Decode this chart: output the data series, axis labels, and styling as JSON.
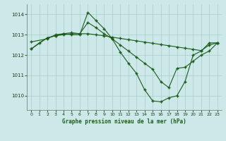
{
  "title": "Graphe pression niveau de la mer (hPa)",
  "bg_color": "#cce8e8",
  "grid_color": "#aacccc",
  "line_color": "#1a5c1a",
  "marker": "+",
  "xlim": [
    -0.5,
    23.5
  ],
  "ylim": [
    1009.3,
    1014.5
  ],
  "yticks": [
    1010,
    1011,
    1012,
    1013,
    1014
  ],
  "xticks": [
    0,
    1,
    2,
    3,
    4,
    5,
    6,
    7,
    8,
    9,
    10,
    11,
    12,
    13,
    14,
    15,
    16,
    17,
    18,
    19,
    20,
    21,
    22,
    23
  ],
  "series": [
    {
      "x": [
        0,
        1,
        2,
        3,
        4,
        5,
        6,
        7,
        8,
        9,
        10,
        11,
        12,
        13,
        14,
        15,
        16,
        17,
        18,
        19,
        20,
        21,
        22,
        23
      ],
      "y": [
        1012.3,
        1012.6,
        1012.85,
        1012.95,
        1013.05,
        1013.0,
        1013.0,
        1014.1,
        1013.7,
        1013.3,
        1012.8,
        1012.15,
        1011.6,
        1011.1,
        1010.3,
        1009.75,
        1009.7,
        1009.9,
        1010.0,
        1010.7,
        1012.0,
        1012.2,
        1012.6,
        1012.6
      ]
    },
    {
      "x": [
        0,
        2,
        3,
        4,
        5,
        6,
        7,
        8,
        9,
        10,
        11,
        12,
        13,
        14,
        15,
        16,
        17,
        18,
        19,
        20,
        21,
        22,
        23
      ],
      "y": [
        1012.3,
        1012.85,
        1012.95,
        1013.0,
        1013.05,
        1013.05,
        1013.05,
        1013.0,
        1012.95,
        1012.88,
        1012.82,
        1012.76,
        1012.7,
        1012.64,
        1012.58,
        1012.52,
        1012.46,
        1012.4,
        1012.34,
        1012.28,
        1012.22,
        1012.5,
        1012.6
      ]
    },
    {
      "x": [
        0,
        2,
        3,
        4,
        5,
        6,
        7,
        8,
        9,
        10,
        11,
        12,
        13,
        14,
        15,
        16,
        17,
        18,
        19,
        20,
        21,
        22,
        23
      ],
      "y": [
        1012.65,
        1012.8,
        1013.0,
        1013.05,
        1013.1,
        1013.05,
        1013.6,
        1013.35,
        1013.05,
        1012.8,
        1012.5,
        1012.2,
        1011.9,
        1011.6,
        1011.3,
        1010.7,
        1010.4,
        1011.35,
        1011.4,
        1011.7,
        1012.0,
        1012.2,
        1012.6
      ]
    }
  ]
}
